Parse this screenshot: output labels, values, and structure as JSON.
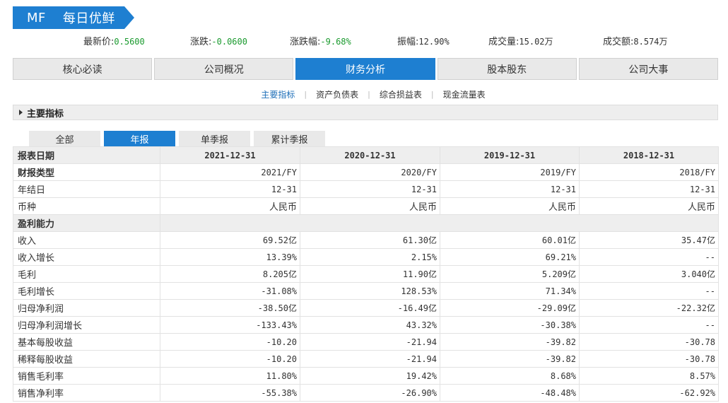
{
  "header": {
    "ticker": "MF",
    "name": "每日优鲜",
    "accent": "#1e7fd1"
  },
  "quote": [
    {
      "label": "最新价:",
      "value": "0.5600",
      "neg": true
    },
    {
      "label": "涨跌:",
      "value": "-0.0600",
      "neg": true
    },
    {
      "label": "涨跌幅:",
      "value": "-9.68%",
      "neg": true
    },
    {
      "label": "振幅:",
      "value": "12.90%",
      "neg": false
    },
    {
      "label": "成交量:",
      "value": "15.02万",
      "neg": false
    },
    {
      "label": "成交额:",
      "value": "8.574万",
      "neg": false
    }
  ],
  "nav": [
    "核心必读",
    "公司概况",
    "财务分析",
    "股本股东",
    "公司大事"
  ],
  "nav_active": "财务分析",
  "subnav": [
    "主要指标",
    "资产负债表",
    "综合损益表",
    "现金流量表"
  ],
  "subnav_active": "主要指标",
  "section_title": "主要指标",
  "period_tabs": [
    "全部",
    "年报",
    "单季报",
    "累计季报"
  ],
  "period_active": "年报",
  "table": {
    "header_label": "报表日期",
    "columns": [
      "2021-12-31",
      "2020-12-31",
      "2019-12-31",
      "2018-12-31"
    ],
    "rows": [
      {
        "label": "财报类型",
        "values": [
          "2021/FY",
          "2020/FY",
          "2019/FY",
          "2018/FY"
        ],
        "bold": true
      },
      {
        "label": "年结日",
        "values": [
          "12-31",
          "12-31",
          "12-31",
          "12-31"
        ]
      },
      {
        "label": "币种",
        "values": [
          "人民币",
          "人民币",
          "人民币",
          "人民币"
        ]
      },
      {
        "label": "盈利能力",
        "group": true
      },
      {
        "label": "收入",
        "values": [
          "69.52亿",
          "61.30亿",
          "60.01亿",
          "35.47亿"
        ]
      },
      {
        "label": "收入增长",
        "values": [
          "13.39%",
          "2.15%",
          "69.21%",
          "--"
        ]
      },
      {
        "label": "毛利",
        "values": [
          "8.205亿",
          "11.90亿",
          "5.209亿",
          "3.040亿"
        ]
      },
      {
        "label": "毛利增长",
        "values": [
          "-31.08%",
          "128.53%",
          "71.34%",
          "--"
        ]
      },
      {
        "label": "归母净利润",
        "values": [
          "-38.50亿",
          "-16.49亿",
          "-29.09亿",
          "-22.32亿"
        ]
      },
      {
        "label": "归母净利润增长",
        "values": [
          "-133.43%",
          "43.32%",
          "-30.38%",
          "--"
        ]
      },
      {
        "label": "基本每股收益",
        "values": [
          "-10.20",
          "-21.94",
          "-39.82",
          "-30.78"
        ]
      },
      {
        "label": "稀释每股收益",
        "values": [
          "-10.20",
          "-21.94",
          "-39.82",
          "-30.78"
        ]
      },
      {
        "label": "销售毛利率",
        "values": [
          "11.80%",
          "19.42%",
          "8.68%",
          "8.57%"
        ]
      },
      {
        "label": "销售净利率",
        "values": [
          "-55.38%",
          "-26.90%",
          "-48.48%",
          "-62.92%"
        ]
      }
    ]
  }
}
